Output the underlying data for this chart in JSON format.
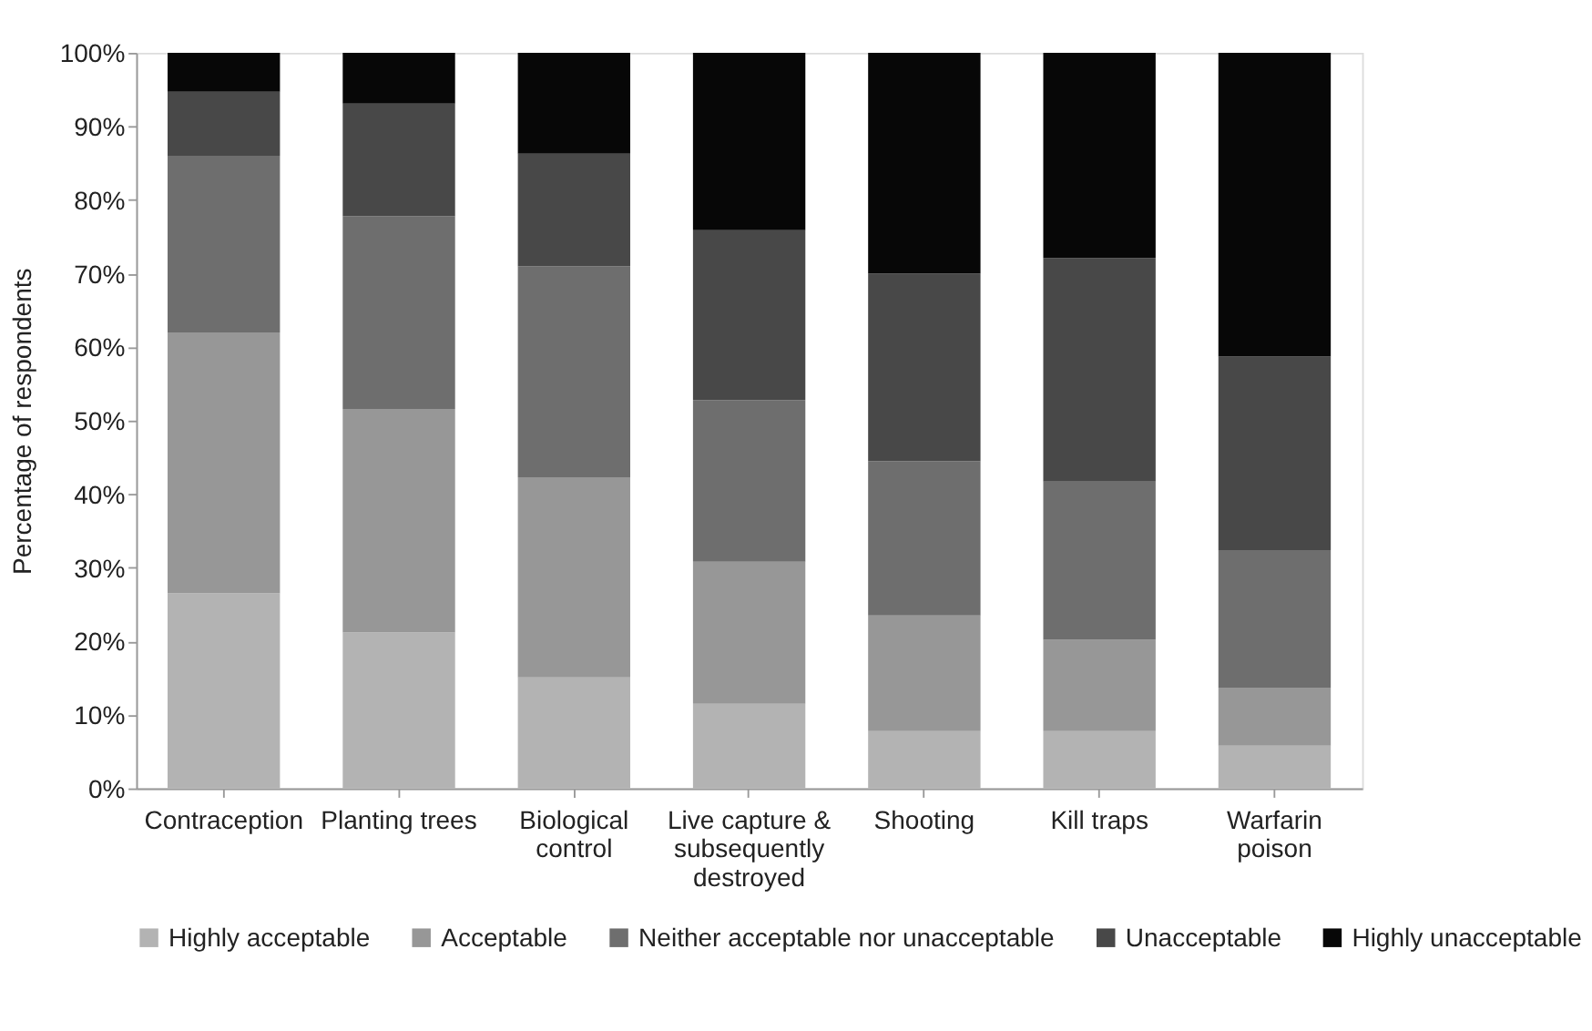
{
  "chart_data": {
    "type": "bar",
    "stacked": true,
    "ylabel": "Percentage  of  respondents",
    "categories": [
      "Contraception",
      "Planting trees",
      "Biological control",
      "Live capture & subsequently destroyed",
      "Shooting",
      "Kill traps",
      "Warfarin poison"
    ],
    "series": [
      {
        "name": "Highly acceptable",
        "color": "#b3b3b3",
        "values": [
          26.5,
          21.2,
          15.1,
          11.5,
          7.8,
          7.8,
          5.8
        ]
      },
      {
        "name": "Acceptable",
        "color": "#979797",
        "values": [
          35.5,
          30.4,
          27.2,
          19.3,
          15.7,
          12.4,
          7.9
        ]
      },
      {
        "name": "Neither acceptable nor unacceptable",
        "color": "#6e6e6e",
        "values": [
          24,
          26.2,
          28.7,
          22,
          21,
          21.5,
          18.7
        ]
      },
      {
        "name": "Unacceptable",
        "color": "#484848",
        "values": [
          8.7,
          15.3,
          15.3,
          23.1,
          25.5,
          30.4,
          26.3
        ]
      },
      {
        "name": "Highly unacceptable",
        "color": "#070707",
        "values": [
          5.3,
          6.9,
          13.7,
          24.1,
          30,
          27.9,
          41.3
        ]
      }
    ],
    "ylim": [
      0,
      100
    ],
    "yticks": [
      {
        "value": 0,
        "label": "0%"
      },
      {
        "value": 10,
        "label": "10%"
      },
      {
        "value": 20,
        "label": "20%"
      },
      {
        "value": 30,
        "label": "30%"
      },
      {
        "value": 40,
        "label": "40%"
      },
      {
        "value": 50,
        "label": "50%"
      },
      {
        "value": 60,
        "label": "60%"
      },
      {
        "value": 70,
        "label": "70%"
      },
      {
        "value": 80,
        "label": "80%"
      },
      {
        "value": 90,
        "label": "90%"
      },
      {
        "value": 100,
        "label": "100%"
      }
    ],
    "grid": false,
    "legend": "bottom"
  }
}
